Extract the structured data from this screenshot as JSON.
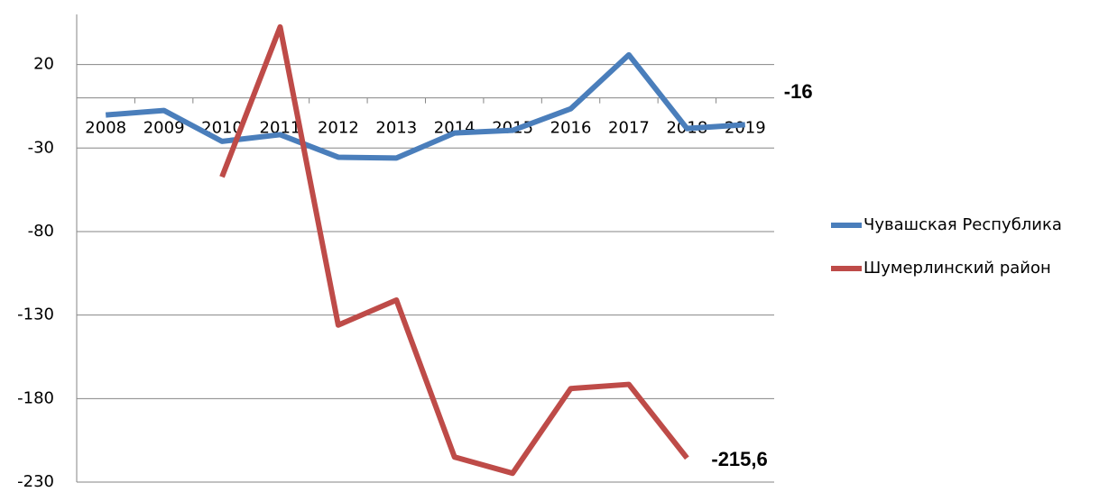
{
  "chart_data": {
    "type": "line",
    "categories": [
      "2008",
      "2009",
      "2010",
      "2011",
      "2012",
      "2013",
      "2014",
      "2015",
      "2016",
      "2017",
      "2018",
      "2019"
    ],
    "series": [
      {
        "name": "Чувашская Республика",
        "color": "#4a7ebb",
        "values": [
          -10.2,
          -7.5,
          -26,
          -22,
          -35.5,
          -36,
          -21,
          -19.4,
          -6.5,
          25.8,
          -18.3,
          -16
        ],
        "value_labels": [
          null,
          null,
          null,
          null,
          null,
          null,
          null,
          null,
          null,
          null,
          null,
          "-16"
        ]
      },
      {
        "name": "Шумерлинский район",
        "color": "#be4b48",
        "values": [
          null,
          null,
          -47.3,
          42.5,
          -136,
          -121,
          -215,
          -224.7,
          -174,
          -171.5,
          -215.6,
          null
        ],
        "value_labels": [
          null,
          null,
          null,
          null,
          null,
          null,
          null,
          null,
          null,
          null,
          "-215,6",
          null
        ]
      }
    ],
    "ylim": [
      -230,
      50
    ],
    "yticks": [
      -230,
      -180,
      -130,
      -80,
      -30,
      20
    ],
    "grid": true,
    "legend": "right"
  }
}
